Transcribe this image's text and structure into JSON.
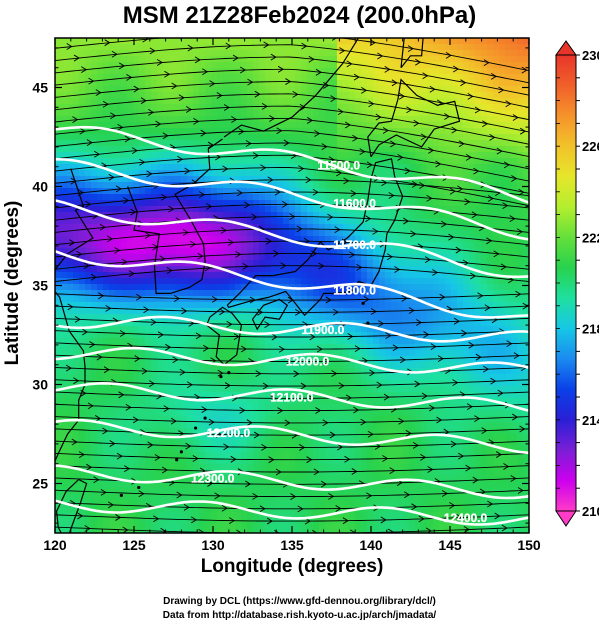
{
  "title": "MSM 21Z28Feb2024 (200.0hPa)",
  "axes": {
    "xlabel": "Longitude (degrees)",
    "ylabel": "Latitude  (degrees)",
    "x_range": [
      120,
      150
    ],
    "y_range": [
      22.5,
      47.5
    ],
    "x_ticks": [
      120,
      125,
      130,
      135,
      140,
      145,
      150
    ],
    "y_ticks": [
      25,
      30,
      35,
      40,
      45
    ]
  },
  "colorbar": {
    "min": 210,
    "max": 230,
    "tick_labels": [
      "230",
      "226",
      "222",
      "218",
      "214",
      "210"
    ],
    "colors": [
      "#ff3cc8",
      "#cc00ee",
      "#7a1fd6",
      "#2a1fd6",
      "#0a40e8",
      "#1a8af0",
      "#16c7e6",
      "#1ee0a0",
      "#28d24e",
      "#64e03a",
      "#b4ee2e",
      "#e6e62a",
      "#f2c22a",
      "#f5932a",
      "#f0602a",
      "#e8352a"
    ]
  },
  "contours": [
    {
      "label": "11500.0",
      "value": 11500,
      "lon": 138,
      "lat": 41.1
    },
    {
      "label": "11600.0",
      "value": 11600,
      "lon": 139,
      "lat": 39.2
    },
    {
      "label": "11700.0",
      "value": 11700,
      "lon": 139,
      "lat": 37.1
    },
    {
      "label": "11800.0",
      "value": 11800,
      "lon": 139,
      "lat": 34.8
    },
    {
      "label": "11900.0",
      "value": 11900,
      "lon": 137,
      "lat": 32.8
    },
    {
      "label": "12000.0",
      "value": 12000,
      "lon": 136,
      "lat": 31.2
    },
    {
      "label": "12100.0",
      "value": 12100,
      "lon": 135,
      "lat": 29.4
    },
    {
      "label": "12200.0",
      "value": 12200,
      "lon": 131,
      "lat": 27.6
    },
    {
      "label": "12300.0",
      "value": 12300,
      "lon": 130,
      "lat": 25.3
    },
    {
      "label": "12400.0",
      "value": 12400,
      "lon": 146,
      "lat": 23.3
    }
  ],
  "credits": {
    "line1": "Drawing by DCL (https://www.gfd-dennou.org/library/dcl/)",
    "line2": "Data from http://database.rish.kyoto-u.ac.jp/arch/jmadata/"
  }
}
